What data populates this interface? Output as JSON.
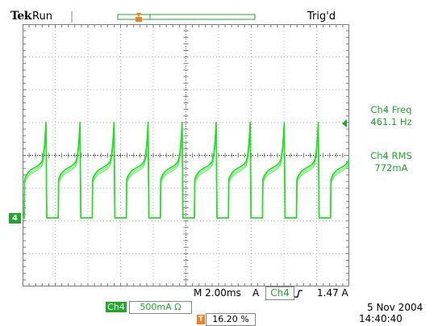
{
  "header": {
    "brand": "Tek",
    "run_state": "Run",
    "trigger_status": "Trig'd"
  },
  "readouts": {
    "freq_label": "Ch4 Freq",
    "freq_value": "461.1 Hz",
    "rms_label": "Ch4 RMS",
    "rms_value": "772mA"
  },
  "markers": {
    "channel": "4",
    "trigger_pos_icon": "T"
  },
  "status_bar": {
    "timebase": "M 2.00ms",
    "trigger_coupling": "A",
    "trigger_channel": "Ch4",
    "trigger_slope_icon": "rising-edge-icon",
    "trigger_level": "1.47 A",
    "channel_badge": "Ch4",
    "channel_scale": "500mA",
    "channel_unit_symbol": "Ω",
    "trigger_position": "16.20 %",
    "date": "5 Nov 2004",
    "time": "14:40:40"
  },
  "colors": {
    "trace": "#22e022",
    "ui_green": "#1fa82a",
    "trigger_orange": "#f08020",
    "grid": "#9a9a9a"
  }
}
